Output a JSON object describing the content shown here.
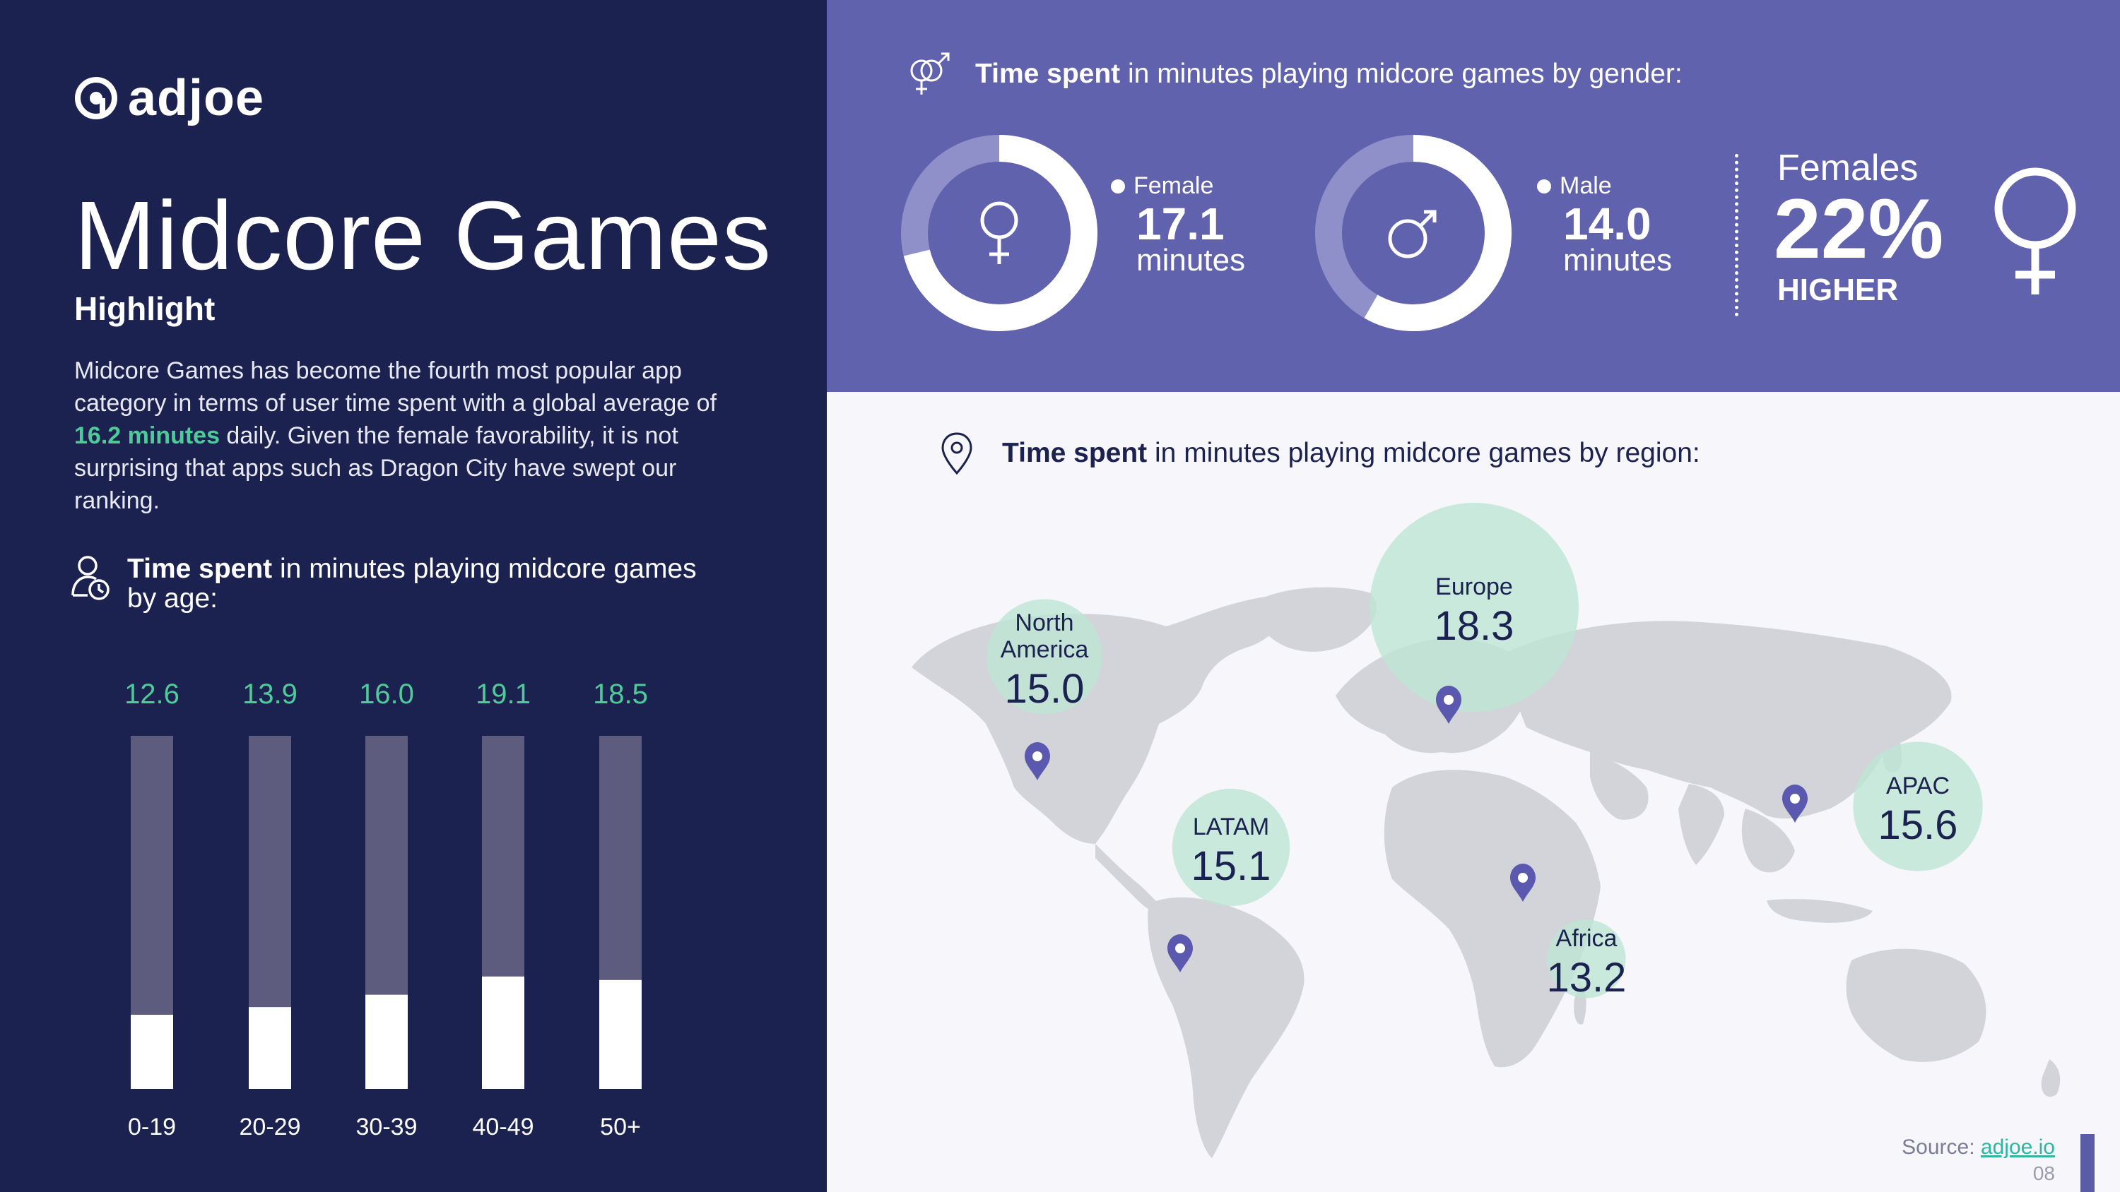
{
  "logo": {
    "text": "adjoe"
  },
  "title": "Midcore Games",
  "subtitle": "Highlight",
  "description": {
    "part1": "Midcore Games has become the fourth most popular app category in terms of user time spent with a global average of ",
    "highlight": "16.2 minutes",
    "part2": " daily. Given the female favorability, it is not surprising that apps such as Dragon City have swept our ranking."
  },
  "age_section": {
    "title_bold": "Time spent",
    "title_rest": " in minutes playing midcore games by age:"
  },
  "gender_section": {
    "title_bold": "Time spent",
    "title_rest": " in minutes playing midcore games by gender:",
    "female": {
      "label": "Female",
      "value": "17.1",
      "unit": "minutes"
    },
    "male": {
      "label": "Male",
      "value": "14.0",
      "unit": "minutes"
    },
    "comparison": {
      "label": "Females",
      "value": "22%",
      "qualifier": "HIGHER"
    }
  },
  "region_section": {
    "title_bold": "Time spent",
    "title_rest": " in minutes playing midcore games by region:"
  },
  "chart_data": [
    {
      "type": "bar",
      "categories": [
        "0-19",
        "20-29",
        "30-39",
        "40-49",
        "50+"
      ],
      "values": [
        12.6,
        13.9,
        16.0,
        19.1,
        18.5
      ],
      "value_labels": [
        "12.6",
        "13.9",
        "16.0",
        "19.1",
        "18.5"
      ],
      "ylim": [
        0,
        60
      ],
      "title": "",
      "xlabel": "",
      "ylabel": ""
    },
    {
      "type": "pie",
      "categories": [
        "Female",
        "Male"
      ],
      "values": [
        17.1,
        14.0
      ],
      "ring_max": 24
    },
    {
      "type": "bubble-map",
      "categories": [
        "North America",
        "Europe",
        "LATAM",
        "Africa",
        "APAC"
      ],
      "labels": [
        [
          "North",
          "America"
        ],
        [
          "Europe"
        ],
        [
          "LATAM"
        ],
        [
          "Africa"
        ],
        [
          "APAC"
        ]
      ],
      "values": [
        15.0,
        18.3,
        15.1,
        13.2,
        15.6
      ],
      "value_labels": [
        "15.0",
        "18.3",
        "15.1",
        "13.2",
        "15.6"
      ]
    }
  ],
  "colors": {
    "navy": "#1B2250",
    "purple": "#6062AE",
    "green": "#4FCB9A",
    "bar_track": "#5E5C7E",
    "bubble": "#BDE5D3",
    "pin": "#5B58B0",
    "land": "#D3D4D9"
  },
  "footer": {
    "source_label": "Source: ",
    "source_link": "adjoe.io",
    "page": "08"
  }
}
